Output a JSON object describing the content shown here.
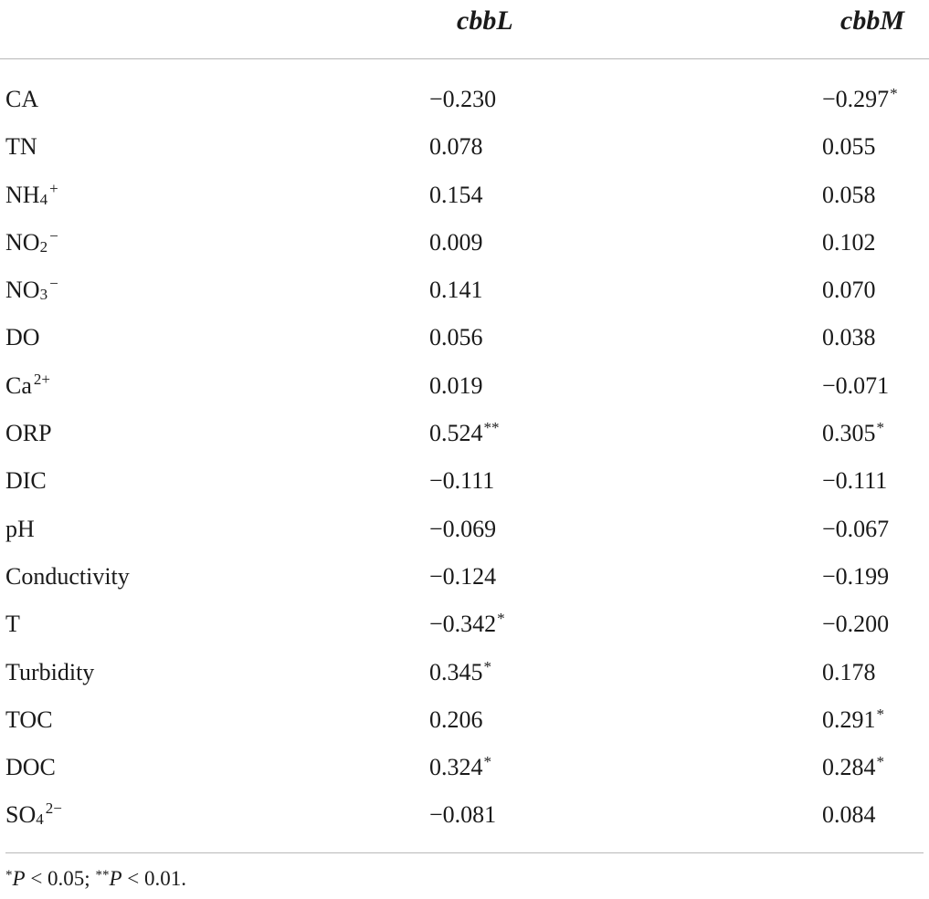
{
  "table": {
    "columns": [
      "cbbL",
      "cbbM"
    ],
    "rows": [
      {
        "label": "CA",
        "cbbL": "−0.230",
        "cbbL_sig": "",
        "cbbM": "−0.297",
        "cbbM_sig": "*"
      },
      {
        "label": "TN",
        "cbbL": "0.078",
        "cbbL_sig": "",
        "cbbM": "0.055",
        "cbbM_sig": ""
      },
      {
        "label_base": "NH",
        "label_sub": "4",
        "label_sup": "+",
        "cbbL": "0.154",
        "cbbL_sig": "",
        "cbbM": "0.058",
        "cbbM_sig": ""
      },
      {
        "label_base": "NO",
        "label_sub": "2",
        "label_sup": "−",
        "cbbL": "0.009",
        "cbbL_sig": "",
        "cbbM": "0.102",
        "cbbM_sig": ""
      },
      {
        "label_base": "NO",
        "label_sub": "3",
        "label_sup": "−",
        "cbbL": "0.141",
        "cbbL_sig": "",
        "cbbM": "0.070",
        "cbbM_sig": ""
      },
      {
        "label": "DO",
        "cbbL": "0.056",
        "cbbL_sig": "",
        "cbbM": "0.038",
        "cbbM_sig": ""
      },
      {
        "label_base": "Ca",
        "label_sub": "",
        "label_sup": "2+",
        "cbbL": "0.019",
        "cbbL_sig": "",
        "cbbM": "−0.071",
        "cbbM_sig": ""
      },
      {
        "label": "ORP",
        "cbbL": "0.524",
        "cbbL_sig": "**",
        "cbbM": "0.305",
        "cbbM_sig": "*"
      },
      {
        "label": "DIC",
        "cbbL": "−0.111",
        "cbbL_sig": "",
        "cbbM": "−0.111",
        "cbbM_sig": ""
      },
      {
        "label": "pH",
        "cbbL": "−0.069",
        "cbbL_sig": "",
        "cbbM": "−0.067",
        "cbbM_sig": ""
      },
      {
        "label": "Conductivity",
        "cbbL": "−0.124",
        "cbbL_sig": "",
        "cbbM": "−0.199",
        "cbbM_sig": ""
      },
      {
        "label": "T",
        "cbbL": "−0.342",
        "cbbL_sig": "*",
        "cbbM": "−0.200",
        "cbbM_sig": ""
      },
      {
        "label": "Turbidity",
        "cbbL": "0.345",
        "cbbL_sig": "*",
        "cbbM": "0.178",
        "cbbM_sig": ""
      },
      {
        "label": "TOC",
        "cbbL": "0.206",
        "cbbL_sig": "",
        "cbbM": "0.291",
        "cbbM_sig": "*"
      },
      {
        "label": "DOC",
        "cbbL": "0.324",
        "cbbL_sig": "*",
        "cbbM": "0.284",
        "cbbM_sig": "*"
      },
      {
        "label_base": "SO",
        "label_sub": "4",
        "label_sup": "2−",
        "cbbL": "−0.081",
        "cbbL_sig": "",
        "cbbM": "0.084",
        "cbbM_sig": ""
      }
    ]
  },
  "footnote": {
    "star1": "*",
    "p1": "P",
    "text1": " < 0.05; ",
    "star2": "**",
    "p2": "P",
    "text2": " < 0.01."
  }
}
